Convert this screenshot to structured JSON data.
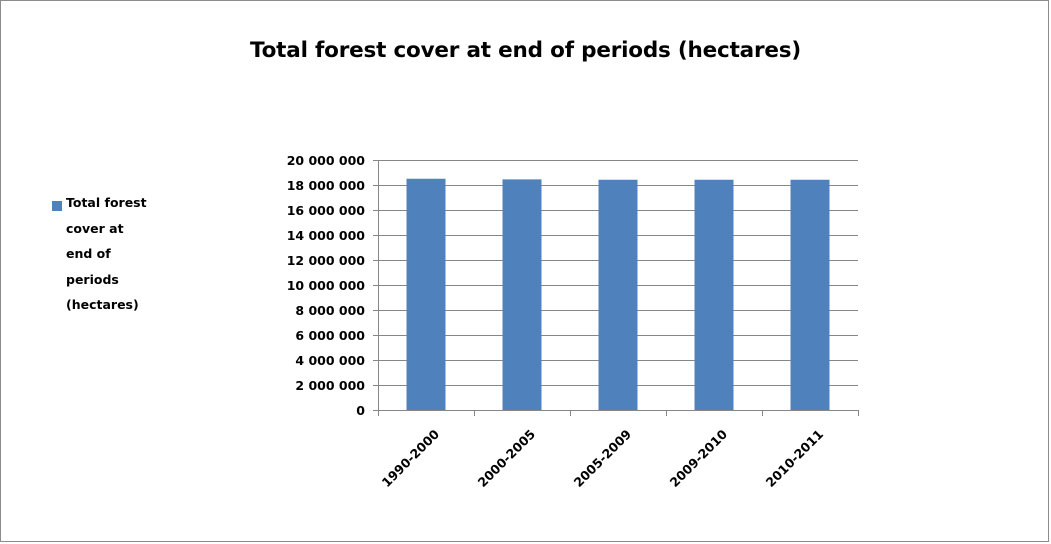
{
  "chart_data": {
    "type": "bar",
    "title": "Total forest cover at end of periods (hectares)",
    "xlabel": "",
    "ylabel": "",
    "categories": [
      "1990-2000",
      "2000-2005",
      "2005-2009",
      "2009-2010",
      "2010-2011"
    ],
    "series": [
      {
        "name": "Total forest cover at end of periods (hectares)",
        "values": [
          18500000,
          18450000,
          18420000,
          18420000,
          18420000
        ],
        "color": "#4f81bd"
      }
    ],
    "ylim": [
      0,
      20000000
    ],
    "yticks": [
      0,
      2000000,
      4000000,
      6000000,
      8000000,
      10000000,
      12000000,
      14000000,
      16000000,
      18000000,
      20000000
    ],
    "ytick_labels": [
      "0",
      "2 000 000",
      "4 000 000",
      "6 000 000",
      "8 000 000",
      "10 000 000",
      "12 000 000",
      "14 000 000",
      "16 000 000",
      "18 000 000",
      "20 000 000"
    ],
    "grid": true,
    "legend_position": "left",
    "legend_lines": [
      "Total forest",
      "cover at",
      "end of",
      "periods",
      "(hectares)"
    ]
  }
}
